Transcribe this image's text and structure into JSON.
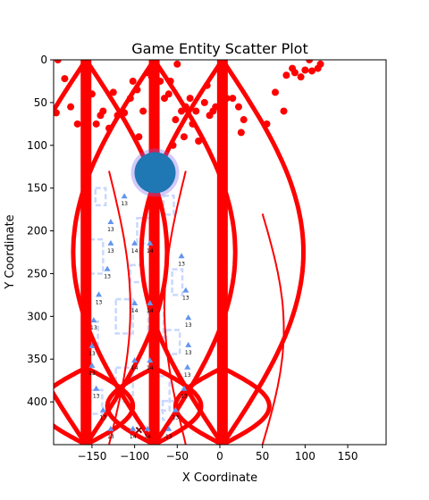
{
  "chart_data": {
    "type": "scatter",
    "title": "Game Entity Scatter Plot",
    "xlabel": "X Coordinate",
    "ylabel": "Y Coordinate",
    "xlim": [
      -195,
      195
    ],
    "ylim": [
      450,
      0
    ],
    "y_inverted": true,
    "grid": false,
    "x_ticks": [
      -150,
      -100,
      -50,
      0,
      50,
      100,
      150
    ],
    "y_ticks": [
      0,
      50,
      100,
      150,
      200,
      250,
      300,
      350,
      400
    ],
    "colors": {
      "paths": "#ff0000",
      "points": "#ff0000",
      "player": "#1f77b4",
      "player_ring": "#7b68ee",
      "markers": "#6495ed",
      "structures": "#c9d8ff",
      "cross": "#8b0000"
    },
    "vertical_bars": [
      {
        "x": -157,
        "y0": 0,
        "y1": 450
      },
      {
        "x": -77,
        "y0": 0,
        "y1": 450
      },
      {
        "x": 3,
        "y0": 0,
        "y1": 450
      }
    ],
    "curves": [
      {
        "x0": -157,
        "amp": -95,
        "y0": 0,
        "y1": 450
      },
      {
        "x0": -157,
        "amp": 95,
        "y0": 0,
        "y1": 450
      },
      {
        "x0": -77,
        "amp": -95,
        "y0": 0,
        "y1": 450
      },
      {
        "x0": -77,
        "amp": 95,
        "y0": 0,
        "y1": 450
      },
      {
        "x0": 3,
        "amp": -95,
        "y0": 0,
        "y1": 450
      },
      {
        "x0": 3,
        "amp": 95,
        "y0": 0,
        "y1": 450
      },
      {
        "x0": -157,
        "amp": -55,
        "y0": 360,
        "y1": 450
      },
      {
        "x0": -157,
        "amp": 55,
        "y0": 360,
        "y1": 450
      },
      {
        "x0": -77,
        "amp": -55,
        "y0": 360,
        "y1": 450
      },
      {
        "x0": -77,
        "amp": 55,
        "y0": 360,
        "y1": 450
      },
      {
        "x0": 3,
        "amp": -55,
        "y0": 360,
        "y1": 450
      },
      {
        "x0": 3,
        "amp": 55,
        "y0": 360,
        "y1": 450
      }
    ],
    "thin_curves": [
      {
        "x0": -130,
        "amp": 25,
        "y0": 130,
        "y1": 450
      },
      {
        "x0": -40,
        "amp": -25,
        "y0": 130,
        "y1": 450
      },
      {
        "x0": 50,
        "amp": 25,
        "y0": 180,
        "y1": 450
      }
    ],
    "points": [
      [
        -190,
        0
      ],
      [
        -182,
        22
      ],
      [
        -192,
        62
      ],
      [
        -175,
        55
      ],
      [
        -167,
        75
      ],
      [
        -150,
        40
      ],
      [
        -145,
        75
      ],
      [
        -140,
        65
      ],
      [
        -137,
        60
      ],
      [
        -130,
        80
      ],
      [
        -125,
        38
      ],
      [
        -120,
        65
      ],
      [
        -112,
        62
      ],
      [
        -105,
        45
      ],
      [
        -102,
        25
      ],
      [
        -97,
        35
      ],
      [
        -95,
        90
      ],
      [
        -90,
        60
      ],
      [
        -85,
        15
      ],
      [
        -80,
        20
      ],
      [
        -70,
        25
      ],
      [
        -65,
        45
      ],
      [
        -60,
        40
      ],
      [
        -58,
        25
      ],
      [
        -55,
        100
      ],
      [
        -52,
        70
      ],
      [
        -50,
        5
      ],
      [
        -45,
        60
      ],
      [
        -42,
        90
      ],
      [
        -40,
        55
      ],
      [
        -35,
        45
      ],
      [
        -32,
        75
      ],
      [
        -28,
        60
      ],
      [
        -25,
        95
      ],
      [
        -18,
        50
      ],
      [
        -15,
        30
      ],
      [
        -12,
        65
      ],
      [
        -8,
        60
      ],
      [
        -5,
        55
      ],
      [
        8,
        45
      ],
      [
        15,
        45
      ],
      [
        22,
        55
      ],
      [
        25,
        85
      ],
      [
        28,
        70
      ],
      [
        55,
        75
      ],
      [
        65,
        38
      ],
      [
        75,
        60
      ],
      [
        78,
        18
      ],
      [
        85,
        10
      ],
      [
        88,
        15
      ],
      [
        95,
        20
      ],
      [
        100,
        12
      ],
      [
        105,
        0
      ],
      [
        108,
        13
      ],
      [
        115,
        10
      ],
      [
        118,
        5
      ]
    ],
    "player": {
      "x": -76,
      "y": 132
    },
    "cross": {
      "x": -95,
      "y": 433
    },
    "markers": [
      {
        "x": -112,
        "y": 160,
        "label": "13"
      },
      {
        "x": -128,
        "y": 190,
        "label": "13"
      },
      {
        "x": -128,
        "y": 215,
        "label": "13"
      },
      {
        "x": -100,
        "y": 215,
        "label": "14"
      },
      {
        "x": -82,
        "y": 215,
        "label": "14"
      },
      {
        "x": -132,
        "y": 245,
        "label": "13"
      },
      {
        "x": -45,
        "y": 230,
        "label": "13"
      },
      {
        "x": -142,
        "y": 275,
        "label": "13"
      },
      {
        "x": -40,
        "y": 270,
        "label": "13"
      },
      {
        "x": -100,
        "y": 285,
        "label": "14"
      },
      {
        "x": -82,
        "y": 285,
        "label": "14"
      },
      {
        "x": -148,
        "y": 305,
        "label": "13"
      },
      {
        "x": -37,
        "y": 302,
        "label": "13"
      },
      {
        "x": -150,
        "y": 335,
        "label": "13"
      },
      {
        "x": -37,
        "y": 334,
        "label": "13"
      },
      {
        "x": -150,
        "y": 358,
        "label": "13"
      },
      {
        "x": -100,
        "y": 352,
        "label": "14"
      },
      {
        "x": -82,
        "y": 352,
        "label": "14"
      },
      {
        "x": -38,
        "y": 360,
        "label": "13"
      },
      {
        "x": -145,
        "y": 385,
        "label": "13"
      },
      {
        "x": -42,
        "y": 385,
        "label": "13"
      },
      {
        "x": -137,
        "y": 410,
        "label": "13"
      },
      {
        "x": -52,
        "y": 410,
        "label": "13"
      },
      {
        "x": -128,
        "y": 432,
        "label": "13"
      },
      {
        "x": -102,
        "y": 432,
        "label": "14"
      },
      {
        "x": -85,
        "y": 432,
        "label": "14"
      },
      {
        "x": -60,
        "y": 432,
        "label": "13"
      }
    ],
    "structures": [
      {
        "x": -140,
        "y": 160,
        "w": 12,
        "h": 20
      },
      {
        "x": -145,
        "y": 230,
        "w": 16,
        "h": 40
      },
      {
        "x": -150,
        "y": 320,
        "w": 14,
        "h": 28
      },
      {
        "x": -145,
        "y": 400,
        "w": 14,
        "h": 28
      },
      {
        "x": -112,
        "y": 300,
        "w": 20,
        "h": 40
      },
      {
        "x": -112,
        "y": 380,
        "w": 20,
        "h": 40
      },
      {
        "x": -98,
        "y": 250,
        "w": 14,
        "h": 20
      },
      {
        "x": -88,
        "y": 200,
        "w": 18,
        "h": 30
      },
      {
        "x": -75,
        "y": 300,
        "w": 18,
        "h": 50
      },
      {
        "x": -70,
        "y": 390,
        "w": 22,
        "h": 40
      },
      {
        "x": -60,
        "y": 170,
        "w": 12,
        "h": 22
      },
      {
        "x": -50,
        "y": 260,
        "w": 12,
        "h": 30
      },
      {
        "x": -55,
        "y": 330,
        "w": 16,
        "h": 28
      },
      {
        "x": -60,
        "y": 410,
        "w": 14,
        "h": 22
      }
    ]
  }
}
